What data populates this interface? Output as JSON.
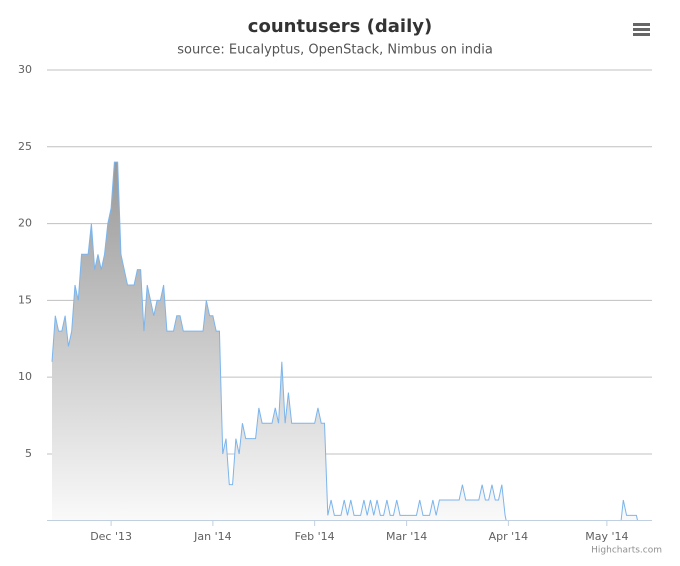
{
  "chart_data": {
    "type": "area",
    "title": "countusers (daily)",
    "subtitle": "source: Eucalyptus, OpenStack, Nimbus on india",
    "credit": "Highcharts.com",
    "color": "#7cb5ec",
    "fill_top": "#999999",
    "fill_bottom": "#ffffff",
    "grid": true,
    "values": [
      11,
      14,
      13,
      13,
      14,
      12,
      13,
      16,
      15,
      18,
      18,
      18,
      20,
      17,
      18,
      17,
      18,
      20,
      21,
      24,
      24,
      18,
      17,
      16,
      16,
      16,
      17,
      17,
      13,
      16,
      15,
      14,
      15,
      15,
      16,
      13,
      13,
      13,
      14,
      14,
      13,
      13,
      13,
      13,
      13,
      13,
      13,
      15,
      14,
      14,
      13,
      13,
      5,
      6,
      3,
      3,
      6,
      5,
      7,
      6,
      6,
      6,
      6,
      8,
      7,
      7,
      7,
      7,
      8,
      7,
      11,
      7,
      9,
      7,
      7,
      7,
      7,
      7,
      7,
      7,
      7,
      8,
      7,
      7,
      1,
      2,
      1,
      1,
      1,
      2,
      1,
      2,
      1,
      1,
      1,
      2,
      1,
      2,
      1,
      2,
      1,
      1,
      2,
      1,
      1,
      2,
      1,
      1,
      1,
      1,
      1,
      1,
      2,
      1,
      1,
      1,
      2,
      1,
      2,
      2,
      2,
      2,
      2,
      2,
      2,
      3,
      2,
      2,
      2,
      2,
      2,
      3,
      2,
      2,
      3,
      2,
      2,
      3,
      1,
      0,
      0,
      0,
      0,
      0,
      0,
      0,
      0,
      0,
      0,
      0,
      0,
      0,
      0,
      0,
      0,
      0,
      0,
      0,
      0,
      0,
      0,
      0,
      0,
      0,
      0,
      0,
      0,
      0,
      0,
      0,
      0,
      0,
      0,
      0,
      2,
      1,
      1,
      1,
      1,
      0
    ],
    "xlim": [
      0,
      180
    ],
    "xticks": [
      {
        "value": 18,
        "label": "Dec '13"
      },
      {
        "value": 49,
        "label": "Jan '14"
      },
      {
        "value": 80,
        "label": "Feb '14"
      },
      {
        "value": 108,
        "label": "Mar '14"
      },
      {
        "value": 139,
        "label": "Apr '14"
      },
      {
        "value": 169,
        "label": "May '14"
      }
    ],
    "ylim": [
      0.7,
      30
    ],
    "yticks": [
      5,
      10,
      15,
      20,
      25,
      30
    ]
  }
}
